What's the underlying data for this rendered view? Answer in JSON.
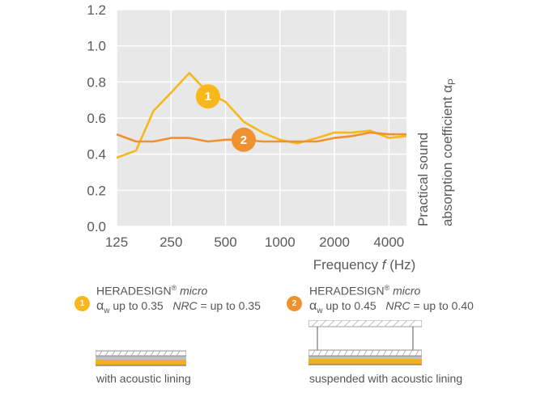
{
  "chart_data": {
    "type": "line",
    "x": [
      125,
      160,
      200,
      250,
      315,
      400,
      500,
      630,
      800,
      1000,
      1250,
      1600,
      2000,
      2500,
      3150,
      4000,
      5000
    ],
    "x_ticks": [
      "125",
      "250",
      "500",
      "1000",
      "2000",
      "4000"
    ],
    "y_ticks": [
      "0.0",
      "0.2",
      "0.4",
      "0.6",
      "0.8",
      "1.0",
      "1.2"
    ],
    "ylim": [
      0,
      1.2
    ],
    "xscale": "log",
    "grid": true,
    "xlabel_prefix": "Frequency ",
    "xlabel_var": "f",
    "xlabel_suffix": " (Hz)",
    "ylabel_line1": "Practical sound",
    "ylabel_line2": "absorption coefficient α",
    "ylabel_sub": "P",
    "series": [
      {
        "marker": "1",
        "color": "#f7b81c",
        "values": [
          0.38,
          0.42,
          0.64,
          0.74,
          0.85,
          0.74,
          0.69,
          0.58,
          0.52,
          0.48,
          0.46,
          0.49,
          0.52,
          0.52,
          0.53,
          0.49,
          0.5
        ],
        "label_at": 400,
        "label_y": 0.72
      },
      {
        "marker": "2",
        "color": "#f0912f",
        "values": [
          0.51,
          0.47,
          0.47,
          0.49,
          0.49,
          0.47,
          0.48,
          0.48,
          0.47,
          0.47,
          0.47,
          0.47,
          0.49,
          0.5,
          0.52,
          0.51,
          0.51
        ],
        "label_at": 630,
        "label_y": 0.48
      }
    ]
  },
  "legend": [
    {
      "marker": "1",
      "color": "#f7b81c",
      "brand": "HERADESIGN",
      "reg": "®",
      "product": "micro",
      "alpha_sym": "α",
      "alpha_sub": "w",
      "alpha_text": " up to 0.35",
      "nrc_label": "NRC",
      "nrc_text": " = up to 0.35",
      "caption": "with acoustic lining"
    },
    {
      "marker": "2",
      "color": "#f0912f",
      "brand": "HERADESIGN",
      "reg": "®",
      "product": "micro",
      "alpha_sym": "α",
      "alpha_sub": "w",
      "alpha_text": " up to 0.45",
      "nrc_label": "NRC",
      "nrc_text": " = up to 0.40",
      "caption": "suspended with acoustic lining"
    }
  ]
}
